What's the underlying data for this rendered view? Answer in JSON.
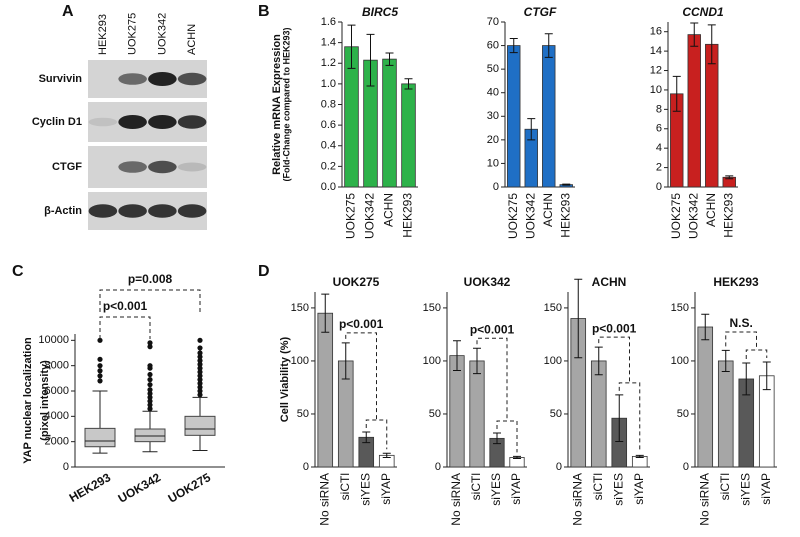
{
  "blot": {
    "panel": "A",
    "lanes": [
      "HEK293",
      "UOK275",
      "UOK342",
      "ACHN"
    ],
    "proteins": [
      "Survivin",
      "Cyclin D1",
      "CTGF",
      "β-Actin"
    ]
  },
  "chart_data": [
    {
      "type": "bar",
      "panel": "B",
      "title": "BIRC5",
      "y_label": "Relative mRNA Expression",
      "y_sublabel": "(Fold-Change compared to HEK293)",
      "categories": [
        "UOK275",
        "UOK342",
        "ACHN",
        "HEK293"
      ],
      "values": [
        1.36,
        1.23,
        1.24,
        1.0
      ],
      "errors": [
        0.21,
        0.25,
        0.06,
        0.05
      ],
      "color": "#2db24a",
      "ylim": [
        0,
        1.6
      ],
      "yticks": [
        {
          "value": 0,
          "label": "0.0"
        },
        0.2,
        0.4,
        0.6,
        0.8,
        {
          "value": 1,
          "label": "1.0"
        },
        1.2,
        1.4,
        1.6
      ]
    },
    {
      "type": "bar",
      "title": "CTGF",
      "categories": [
        "UOK275",
        "UOK342",
        "ACHN",
        "HEK293"
      ],
      "values": [
        60,
        24.5,
        60,
        1
      ],
      "errors": [
        3,
        4.5,
        5,
        0.2
      ],
      "color": "#1f6fc5",
      "ylim": [
        0,
        70
      ],
      "yticks": [
        0,
        10,
        20,
        30,
        40,
        50,
        60,
        70
      ]
    },
    {
      "type": "bar",
      "title": "CCND1",
      "categories": [
        "UOK275",
        "UOK342",
        "ACHN",
        "HEK293"
      ],
      "values": [
        9.6,
        15.7,
        14.7,
        1.0
      ],
      "errors": [
        1.8,
        1.2,
        2.0,
        0.15
      ],
      "color": "#c8201f",
      "ylim": [
        0,
        17
      ],
      "yticks": [
        0,
        2,
        4,
        6,
        8,
        10,
        12,
        14,
        16
      ]
    },
    {
      "type": "box",
      "panel": "C",
      "y_label": "YAP nuclear localization",
      "y_sublabel": "(pixel intensity)",
      "color": "#c8c8c8",
      "categories": [
        "HEK293",
        "UOK342",
        "UOK275"
      ],
      "stats": [
        {
          "whislo": 1100,
          "q1": 1600,
          "med": 2050,
          "q3": 3050,
          "whishi": 6000,
          "fliers": [
            6800,
            7200,
            7600,
            8000,
            8500,
            10000
          ]
        },
        {
          "whislo": 1200,
          "q1": 2000,
          "med": 2450,
          "q3": 3000,
          "whishi": 4400,
          "fliers": [
            4600,
            4900,
            5200,
            5500,
            5800,
            6100,
            6500,
            6900,
            7300,
            7800,
            8000,
            9500,
            9800
          ]
        },
        {
          "whislo": 1300,
          "q1": 2500,
          "med": 3000,
          "q3": 4000,
          "whishi": 5500,
          "fliers": [
            5700,
            6000,
            6300,
            6600,
            6900,
            7200,
            7500,
            7800,
            8100,
            8400,
            8700,
            9000,
            9400,
            10000
          ]
        }
      ],
      "annotations": [
        "p<0.001",
        "p=0.008"
      ],
      "ylim": [
        0,
        10500
      ],
      "yticks": [
        0,
        2000,
        4000,
        6000,
        8000,
        10000
      ]
    },
    {
      "type": "bar",
      "panel": "D",
      "title": "UOK275",
      "y_label": "Cell Viability (%)",
      "categories": [
        "No siRNA",
        "siCTl",
        "siYES",
        "siYAP"
      ],
      "values": [
        145,
        100,
        28,
        11
      ],
      "errors": [
        18,
        17,
        5,
        2
      ],
      "colors": [
        "#a6a6a6",
        "#a6a6a6",
        "#595959",
        "#ffffff"
      ],
      "annotation": "p<0.001",
      "ylim": [
        0,
        165
      ],
      "yticks": [
        0,
        50,
        100,
        150
      ]
    },
    {
      "type": "bar",
      "title": "UOK342",
      "categories": [
        "No siRNA",
        "siCTl",
        "siYES",
        "siYAP"
      ],
      "values": [
        105,
        100,
        27,
        9
      ],
      "errors": [
        14,
        12,
        5,
        1
      ],
      "colors": [
        "#a6a6a6",
        "#a6a6a6",
        "#595959",
        "#ffffff"
      ],
      "annotation": "p<0.001",
      "ylim": [
        0,
        165
      ],
      "yticks": [
        0,
        50,
        100,
        150
      ]
    },
    {
      "type": "bar",
      "title": "ACHN",
      "categories": [
        "No siRNA",
        "siCTl",
        "siYES",
        "siYAP"
      ],
      "values": [
        140,
        100,
        46,
        10
      ],
      "errors": [
        37,
        13,
        22,
        1
      ],
      "colors": [
        "#a6a6a6",
        "#a6a6a6",
        "#595959",
        "#ffffff"
      ],
      "annotation": "p<0.001",
      "ylim": [
        0,
        165
      ],
      "yticks": [
        0,
        50,
        100,
        150
      ]
    },
    {
      "type": "bar",
      "title": "HEK293",
      "categories": [
        "No siRNA",
        "siCTl",
        "siYES",
        "siYAP"
      ],
      "values": [
        132,
        100,
        83,
        86
      ],
      "errors": [
        12,
        10,
        15,
        13
      ],
      "colors": [
        "#a6a6a6",
        "#a6a6a6",
        "#595959",
        "#ffffff"
      ],
      "annotation": "N.S.",
      "ylim": [
        0,
        165
      ],
      "yticks": [
        0,
        50,
        100,
        150
      ]
    }
  ]
}
